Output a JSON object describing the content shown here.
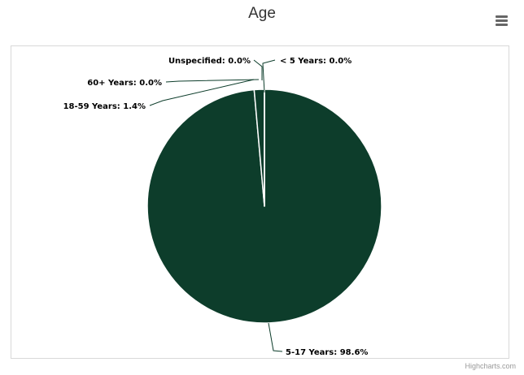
{
  "chart_data": {
    "type": "pie",
    "title": "Age",
    "slices": [
      {
        "name": "< 5 Years",
        "value": 0.0,
        "label": "< 5 Years: 0.0%"
      },
      {
        "name": "5-17 Years",
        "value": 98.6,
        "label": "5-17 Years: 98.6%"
      },
      {
        "name": "18-59 Years",
        "value": 1.4,
        "label": "18-59 Years: 1.4%"
      },
      {
        "name": "60+ Years",
        "value": 0.0,
        "label": "60+ Years: 0.0%"
      },
      {
        "name": "Unspecified",
        "value": 0.0,
        "label": "Unspecified: 0.0%"
      }
    ],
    "colors": {
      "slice_fill": "#0d3d2b",
      "slice_border": "#ffffff",
      "connector": "#0d3d2b"
    }
  },
  "menu": {
    "icon": "hamburger-menu-icon"
  },
  "credits": "Highcharts.com"
}
